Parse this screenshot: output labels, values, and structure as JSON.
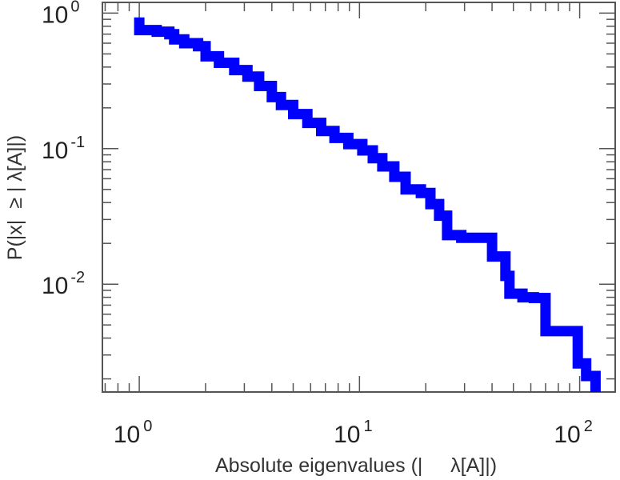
{
  "chart_data": {
    "type": "line",
    "title": "",
    "xlabel": "Absolute eigenvalues (|     λ[A]|)",
    "ylabel": "P(|x|  ≥ | λ[A]|)",
    "x_scale": "log",
    "y_scale": "log",
    "xlim": [
      0.68,
      145
    ],
    "ylim": [
      0.0016,
      1.2
    ],
    "grid": false,
    "legend": "none",
    "line_color": "#0000ff",
    "x_ticks": [
      {
        "value": 1,
        "base": "10",
        "exp": "0"
      },
      {
        "value": 10,
        "base": "10",
        "exp": "1"
      },
      {
        "value": 100,
        "base": "10",
        "exp": "2"
      }
    ],
    "y_ticks": [
      {
        "value": 1,
        "base": "10",
        "exp": "0"
      },
      {
        "value": 0.1,
        "base": "10",
        "exp": "-1"
      },
      {
        "value": 0.01,
        "base": "10",
        "exp": "-2"
      }
    ],
    "series": [
      {
        "step": "post",
        "points": [
          [
            1.0,
            0.93
          ],
          [
            1.0,
            0.75
          ],
          [
            1.2,
            0.73
          ],
          [
            1.37,
            0.7
          ],
          [
            1.44,
            0.64
          ],
          [
            1.6,
            0.6
          ],
          [
            1.85,
            0.57
          ],
          [
            2.0,
            0.48
          ],
          [
            2.3,
            0.43
          ],
          [
            2.7,
            0.38
          ],
          [
            3.1,
            0.34
          ],
          [
            3.5,
            0.29
          ],
          [
            4.0,
            0.24
          ],
          [
            4.4,
            0.21
          ],
          [
            5.0,
            0.18
          ],
          [
            5.8,
            0.155
          ],
          [
            6.7,
            0.135
          ],
          [
            7.7,
            0.12
          ],
          [
            8.9,
            0.108
          ],
          [
            10.3,
            0.097
          ],
          [
            11.5,
            0.085
          ],
          [
            12.7,
            0.074
          ],
          [
            14.4,
            0.062
          ],
          [
            16.2,
            0.05
          ],
          [
            19.0,
            0.047
          ],
          [
            21.0,
            0.039
          ],
          [
            23.0,
            0.032
          ],
          [
            25.0,
            0.023
          ],
          [
            29.0,
            0.022
          ],
          [
            35.0,
            0.022
          ],
          [
            40.0,
            0.016
          ],
          [
            46.0,
            0.0115
          ],
          [
            48.0,
            0.0085
          ],
          [
            55.0,
            0.008
          ],
          [
            62.0,
            0.0079
          ],
          [
            70.0,
            0.0045
          ],
          [
            89.0,
            0.0045
          ],
          [
            98.0,
            0.0026
          ],
          [
            107.0,
            0.0021
          ],
          [
            118.0,
            0.0014
          ]
        ]
      }
    ]
  }
}
